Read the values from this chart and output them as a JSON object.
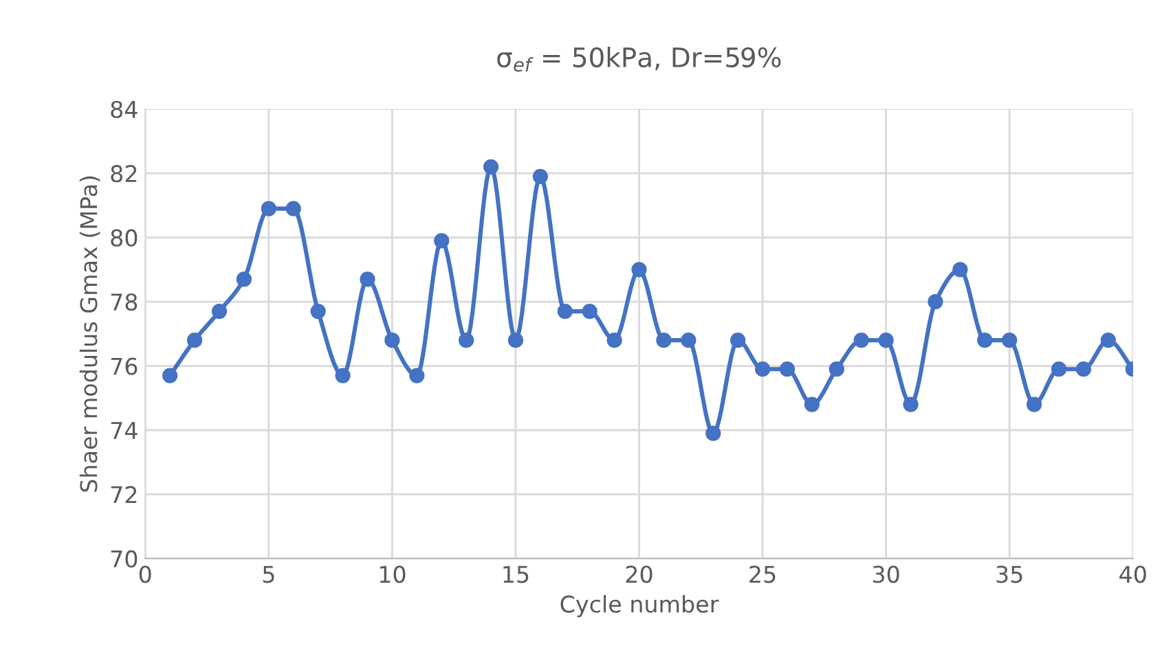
{
  "chart_data": {
    "type": "line",
    "title": "σ$_{ef}$ = 50kPa, Dr=59%",
    "xlabel": "Cycle number",
    "ylabel": "Shaer modulus Gmax (MPa)",
    "x": [
      1,
      2,
      3,
      4,
      5,
      6,
      7,
      8,
      9,
      10,
      11,
      12,
      13,
      14,
      15,
      16,
      17,
      18,
      19,
      20,
      21,
      22,
      23,
      24,
      25,
      26,
      27,
      28,
      29,
      30,
      31,
      32,
      33,
      34,
      35,
      36,
      37,
      38,
      39,
      40
    ],
    "series": [
      {
        "color": "#4472c4",
        "values": [
          75.7,
          76.8,
          77.7,
          78.7,
          80.9,
          80.9,
          77.7,
          75.7,
          78.7,
          76.8,
          75.7,
          79.9,
          76.8,
          82.2,
          76.8,
          81.9,
          77.7,
          77.7,
          76.8,
          79.0,
          76.8,
          76.8,
          73.9,
          76.8,
          75.9,
          75.9,
          74.8,
          75.9,
          76.8,
          76.8,
          74.8,
          78.0,
          79.0,
          76.8,
          76.8,
          74.8,
          75.9,
          75.9,
          76.8,
          75.9
        ]
      }
    ],
    "xlim": [
      0,
      40
    ],
    "ylim": [
      70,
      84
    ],
    "xticks": [
      0,
      5,
      10,
      15,
      20,
      25,
      30,
      35,
      40
    ],
    "yticks": [
      70,
      72,
      74,
      76,
      78,
      80,
      82,
      84
    ],
    "grid": true,
    "marker": "circle",
    "line_style": "solid"
  }
}
